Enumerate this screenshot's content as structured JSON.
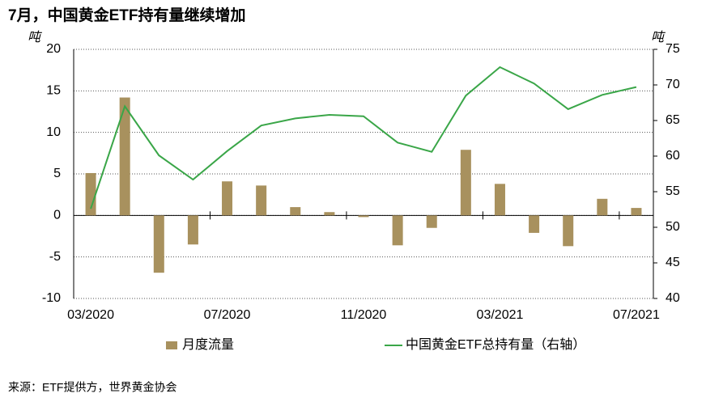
{
  "chart_data": {
    "type": "bar-line",
    "title": "7月，中国黄金ETF持有量继续增加",
    "y_label": "吨",
    "y2_label": "吨",
    "source": "来源：ETF提供方，世界黄金协会",
    "categories": [
      "03/2020",
      null,
      null,
      null,
      "07/2020",
      null,
      null,
      null,
      "11/2020",
      null,
      null,
      null,
      "03/2021",
      null,
      null,
      null,
      "07/2021"
    ],
    "series": [
      {
        "name": "月度流量",
        "type": "bar",
        "color": "#a8915e",
        "values": [
          5.1,
          14.2,
          -6.9,
          -3.5,
          4.1,
          3.6,
          1.0,
          0.4,
          -0.2,
          -3.6,
          -1.5,
          7.9,
          3.8,
          -2.1,
          -3.7,
          2.0,
          0.9
        ]
      },
      {
        "name": "中国黄金ETF总持有量（右轴）",
        "type": "line",
        "axis": "y2",
        "color": "#3aa648",
        "values": [
          52.6,
          67.0,
          60.1,
          56.7,
          60.7,
          64.3,
          65.3,
          65.8,
          65.6,
          61.9,
          60.6,
          68.5,
          72.5,
          70.2,
          66.6,
          68.6,
          69.7
        ]
      }
    ],
    "ylim": [
      -10,
      20
    ],
    "yticks": [
      -10,
      -5,
      0,
      5,
      10,
      15,
      20
    ],
    "y2lim": [
      40,
      75
    ],
    "y2ticks": [
      40,
      45,
      50,
      55,
      60,
      65,
      70,
      75
    ],
    "grid": true
  }
}
